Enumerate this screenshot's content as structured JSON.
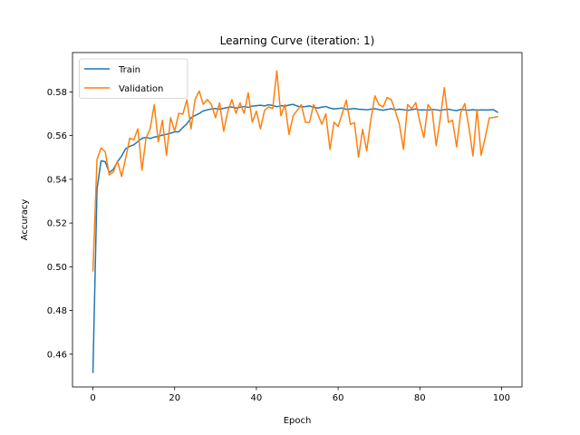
{
  "chart_data": {
    "type": "line",
    "title": "Learning Curve (iteration: 1)",
    "xlabel": "Epoch",
    "ylabel": "Accuracy",
    "xlim": [
      -5,
      105
    ],
    "ylim": [
      0.445,
      0.598
    ],
    "xticks": [
      0,
      20,
      40,
      60,
      80,
      100
    ],
    "yticks": [
      0.46,
      0.48,
      0.5,
      0.52,
      0.54,
      0.56,
      0.58
    ],
    "ytick_labels": [
      "0.46",
      "0.48",
      "0.50",
      "0.52",
      "0.54",
      "0.56",
      "0.58"
    ],
    "grid": false,
    "legend_position": "upper-left",
    "series": [
      {
        "name": "Train",
        "color": "#1f77b4",
        "x": [
          0,
          1,
          2,
          3,
          4,
          5,
          6,
          7,
          8,
          9,
          10,
          11,
          12,
          13,
          14,
          15,
          16,
          17,
          18,
          19,
          20,
          21,
          22,
          23,
          24,
          25,
          26,
          27,
          28,
          29,
          30,
          31,
          32,
          33,
          34,
          35,
          36,
          37,
          38,
          39,
          40,
          41,
          42,
          43,
          44,
          45,
          46,
          47,
          48,
          49,
          50,
          51,
          52,
          53,
          54,
          55,
          56,
          57,
          58,
          59,
          60,
          61,
          62,
          63,
          64,
          65,
          66,
          67,
          68,
          69,
          70,
          71,
          72,
          73,
          74,
          75,
          76,
          77,
          78,
          79,
          80,
          81,
          82,
          83,
          84,
          85,
          86,
          87,
          88,
          89,
          90,
          91,
          92,
          93,
          94,
          95,
          96,
          97,
          98,
          99
        ],
        "values": [
          0.4517,
          0.5356,
          0.5485,
          0.5481,
          0.5431,
          0.5446,
          0.548,
          0.5506,
          0.554,
          0.5551,
          0.5558,
          0.5573,
          0.5588,
          0.5592,
          0.5587,
          0.5593,
          0.5597,
          0.5602,
          0.5606,
          0.5611,
          0.5617,
          0.5617,
          0.5637,
          0.5654,
          0.5682,
          0.5692,
          0.5701,
          0.5713,
          0.5718,
          0.5722,
          0.5724,
          0.5721,
          0.5725,
          0.5729,
          0.5731,
          0.5726,
          0.573,
          0.5733,
          0.5729,
          0.5735,
          0.5737,
          0.5739,
          0.5736,
          0.5741,
          0.5738,
          0.5732,
          0.5737,
          0.5735,
          0.574,
          0.5743,
          0.5735,
          0.5731,
          0.5733,
          0.5736,
          0.5729,
          0.5726,
          0.573,
          0.5733,
          0.5726,
          0.5722,
          0.5724,
          0.5726,
          0.572,
          0.5722,
          0.5724,
          0.5721,
          0.572,
          0.5718,
          0.5721,
          0.5723,
          0.5719,
          0.5716,
          0.572,
          0.5723,
          0.5718,
          0.5721,
          0.5719,
          0.5715,
          0.5719,
          0.5722,
          0.5717,
          0.5718,
          0.5716,
          0.572,
          0.5718,
          0.5715,
          0.5719,
          0.5721,
          0.5717,
          0.5714,
          0.572,
          0.5718,
          0.5716,
          0.5719,
          0.5716,
          0.5718,
          0.5717,
          0.5718,
          0.5719,
          0.5707
        ]
      },
      {
        "name": "Validation",
        "color": "#ff7f0e",
        "x": [
          0,
          1,
          2,
          3,
          4,
          5,
          6,
          7,
          8,
          9,
          10,
          11,
          12,
          13,
          14,
          15,
          16,
          17,
          18,
          19,
          20,
          21,
          22,
          23,
          24,
          25,
          26,
          27,
          28,
          29,
          30,
          31,
          32,
          33,
          34,
          35,
          36,
          37,
          38,
          39,
          40,
          41,
          42,
          43,
          44,
          45,
          46,
          47,
          48,
          49,
          50,
          51,
          52,
          53,
          54,
          55,
          56,
          57,
          58,
          59,
          60,
          61,
          62,
          63,
          64,
          65,
          66,
          67,
          68,
          69,
          70,
          71,
          72,
          73,
          74,
          75,
          76,
          77,
          78,
          79,
          80,
          81,
          82,
          83,
          84,
          85,
          86,
          87,
          88,
          89,
          90,
          91,
          92,
          93,
          94,
          95,
          96,
          97,
          98,
          99
        ],
        "values": [
          0.4981,
          0.5491,
          0.5544,
          0.5527,
          0.542,
          0.5434,
          0.5484,
          0.5413,
          0.5495,
          0.5588,
          0.5581,
          0.5631,
          0.5442,
          0.559,
          0.5631,
          0.5741,
          0.5571,
          0.567,
          0.551,
          0.5682,
          0.562,
          0.5702,
          0.5698,
          0.5764,
          0.5631,
          0.5765,
          0.5804,
          0.5743,
          0.5765,
          0.5742,
          0.5682,
          0.575,
          0.562,
          0.5712,
          0.5765,
          0.5702,
          0.575,
          0.5702,
          0.5796,
          0.5661,
          0.5712,
          0.5631,
          0.5716,
          0.5731,
          0.5724,
          0.5896,
          0.5691,
          0.5742,
          0.5605,
          0.5691,
          0.5716,
          0.5742,
          0.5661,
          0.5661,
          0.5742,
          0.57,
          0.5652,
          0.57,
          0.5537,
          0.5661,
          0.5642,
          0.57,
          0.5762,
          0.5652,
          0.5659,
          0.5501,
          0.5629,
          0.553,
          0.5672,
          0.5782,
          0.5742,
          0.5731,
          0.5774,
          0.5765,
          0.5712,
          0.5652,
          0.5537,
          0.5742,
          0.5723,
          0.5751,
          0.5664,
          0.5591,
          0.5742,
          0.5716,
          0.5554,
          0.568,
          0.582,
          0.5661,
          0.567,
          0.5549,
          0.5704,
          0.5747,
          0.5639,
          0.5507,
          0.572,
          0.551,
          0.5591,
          0.5681,
          0.5683,
          0.5687
        ]
      }
    ]
  }
}
